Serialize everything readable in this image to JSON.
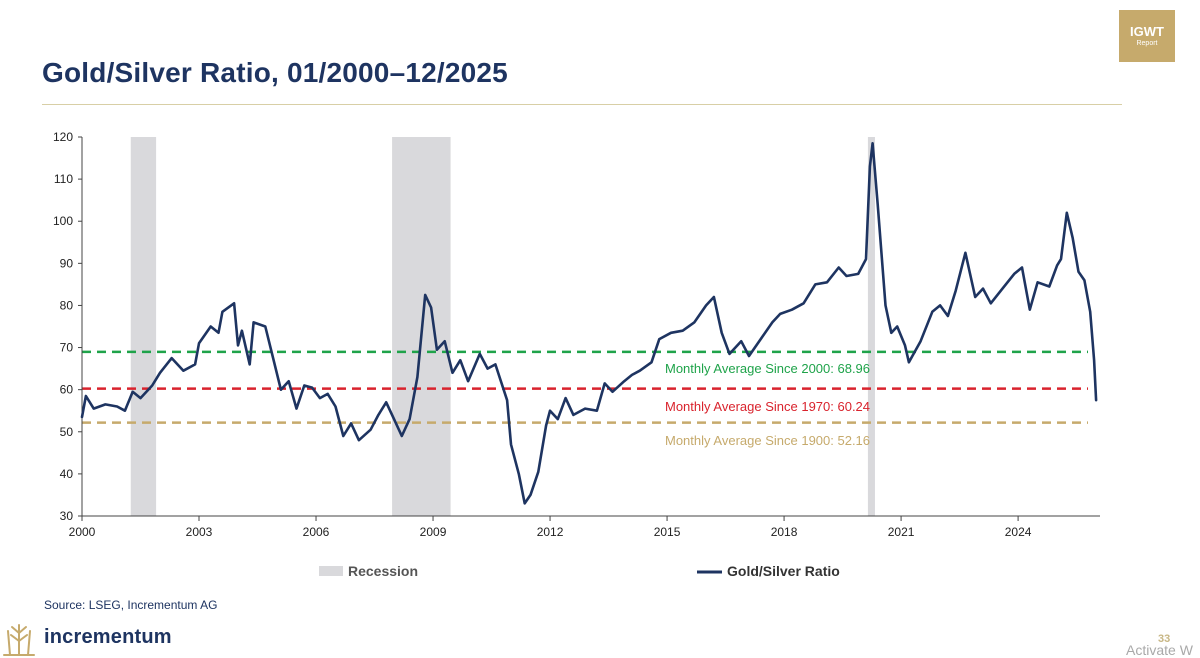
{
  "slide": {
    "title": "Gold/Silver Ratio, 01/2000–12/2025",
    "logo_text": "IGWT",
    "logo_subtext": "Report",
    "source": "Source: LSEG, Incrementum AG",
    "brand": "incrementum",
    "page_number": "33",
    "watermark": "Activate W"
  },
  "colors": {
    "navy": "#1e3461",
    "gold": "#c6aa6c",
    "recession": "#d9d9dc",
    "avg2000": "#1fa34a",
    "avg1970": "#d9232d",
    "avg1900": "#c6aa6c"
  },
  "chart_data": {
    "type": "line",
    "xlim": [
      2000,
      2026.1
    ],
    "ylim": [
      30,
      120
    ],
    "x_ticks": [
      "2000",
      "2003",
      "2006",
      "2009",
      "2012",
      "2015",
      "2018",
      "2021",
      "2024"
    ],
    "y_ticks": [
      "30",
      "40",
      "50",
      "60",
      "70",
      "80",
      "90",
      "100",
      "110",
      "120"
    ],
    "grid": false,
    "legend_position": "bottom",
    "legend": [
      {
        "type": "area",
        "label": "Recession"
      },
      {
        "type": "line",
        "label": "Gold/Silver Ratio"
      }
    ],
    "recessions": [
      {
        "start": 2001.25,
        "end": 2001.9
      },
      {
        "start": 2007.95,
        "end": 2009.45
      },
      {
        "start": 2020.15,
        "end": 2020.33
      }
    ],
    "reference_lines": [
      {
        "label": "Monthly Average Since 2000: 68.96",
        "value": 68.96,
        "color": "#1fa34a"
      },
      {
        "label": "Monthly Average Since 1970: 60.24",
        "value": 60.24,
        "color": "#d9232d"
      },
      {
        "label": "Monthly Average Since 1900: 52.16",
        "value": 52.16,
        "color": "#c6aa6c"
      }
    ],
    "series": [
      {
        "name": "Gold/Silver Ratio",
        "color": "#1e3461",
        "points": [
          [
            2000.0,
            53.5
          ],
          [
            2000.1,
            58.5
          ],
          [
            2000.3,
            55.5
          ],
          [
            2000.6,
            56.5
          ],
          [
            2000.9,
            56.0
          ],
          [
            2001.1,
            55.0
          ],
          [
            2001.3,
            59.5
          ],
          [
            2001.5,
            58.0
          ],
          [
            2001.8,
            61.0
          ],
          [
            2002.0,
            64.0
          ],
          [
            2002.3,
            67.5
          ],
          [
            2002.6,
            64.5
          ],
          [
            2002.9,
            66.0
          ],
          [
            2003.0,
            71.0
          ],
          [
            2003.3,
            75.0
          ],
          [
            2003.5,
            73.5
          ],
          [
            2003.6,
            78.5
          ],
          [
            2003.9,
            80.5
          ],
          [
            2004.0,
            70.5
          ],
          [
            2004.1,
            74.0
          ],
          [
            2004.3,
            66.0
          ],
          [
            2004.4,
            76.0
          ],
          [
            2004.7,
            75.0
          ],
          [
            2004.9,
            67.5
          ],
          [
            2005.1,
            60.0
          ],
          [
            2005.3,
            62.0
          ],
          [
            2005.5,
            55.5
          ],
          [
            2005.7,
            61.0
          ],
          [
            2005.9,
            60.5
          ],
          [
            2006.1,
            58.0
          ],
          [
            2006.3,
            59.0
          ],
          [
            2006.5,
            56.0
          ],
          [
            2006.7,
            49.0
          ],
          [
            2006.9,
            52.0
          ],
          [
            2007.1,
            48.0
          ],
          [
            2007.4,
            50.5
          ],
          [
            2007.6,
            54.0
          ],
          [
            2007.8,
            57.0
          ],
          [
            2008.0,
            53.0
          ],
          [
            2008.2,
            49.0
          ],
          [
            2008.4,
            53.0
          ],
          [
            2008.6,
            63.0
          ],
          [
            2008.8,
            82.5
          ],
          [
            2008.95,
            79.5
          ],
          [
            2009.1,
            69.5
          ],
          [
            2009.3,
            71.5
          ],
          [
            2009.5,
            64.0
          ],
          [
            2009.7,
            67.0
          ],
          [
            2009.9,
            62.0
          ],
          [
            2010.2,
            68.5
          ],
          [
            2010.4,
            65.0
          ],
          [
            2010.6,
            66.0
          ],
          [
            2010.9,
            57.5
          ],
          [
            2011.0,
            47.0
          ],
          [
            2011.2,
            40.0
          ],
          [
            2011.35,
            33.0
          ],
          [
            2011.5,
            35.0
          ],
          [
            2011.7,
            40.5
          ],
          [
            2011.9,
            51.5
          ],
          [
            2012.0,
            55.0
          ],
          [
            2012.2,
            53.0
          ],
          [
            2012.4,
            58.0
          ],
          [
            2012.6,
            54.0
          ],
          [
            2012.9,
            55.5
          ],
          [
            2013.2,
            55.0
          ],
          [
            2013.4,
            61.5
          ],
          [
            2013.6,
            59.5
          ],
          [
            2013.9,
            62.0
          ],
          [
            2014.1,
            63.5
          ],
          [
            2014.3,
            64.5
          ],
          [
            2014.6,
            66.5
          ],
          [
            2014.8,
            72.0
          ],
          [
            2015.1,
            73.5
          ],
          [
            2015.4,
            74.0
          ],
          [
            2015.7,
            76.0
          ],
          [
            2016.0,
            80.0
          ],
          [
            2016.2,
            82.0
          ],
          [
            2016.4,
            73.5
          ],
          [
            2016.6,
            68.5
          ],
          [
            2016.9,
            71.5
          ],
          [
            2017.1,
            68.0
          ],
          [
            2017.4,
            72.0
          ],
          [
            2017.7,
            76.0
          ],
          [
            2017.9,
            78.0
          ],
          [
            2018.2,
            79.0
          ],
          [
            2018.5,
            80.5
          ],
          [
            2018.8,
            85.0
          ],
          [
            2019.1,
            85.5
          ],
          [
            2019.4,
            89.0
          ],
          [
            2019.6,
            87.0
          ],
          [
            2019.9,
            87.5
          ],
          [
            2020.1,
            91.0
          ],
          [
            2020.2,
            113.0
          ],
          [
            2020.27,
            118.5
          ],
          [
            2020.4,
            104.0
          ],
          [
            2020.6,
            80.0
          ],
          [
            2020.75,
            73.5
          ],
          [
            2020.9,
            75.0
          ],
          [
            2021.1,
            70.5
          ],
          [
            2021.2,
            66.5
          ],
          [
            2021.5,
            71.5
          ],
          [
            2021.8,
            78.5
          ],
          [
            2022.0,
            80.0
          ],
          [
            2022.2,
            77.5
          ],
          [
            2022.4,
            83.5
          ],
          [
            2022.65,
            92.5
          ],
          [
            2022.9,
            82.0
          ],
          [
            2023.1,
            84.0
          ],
          [
            2023.3,
            80.5
          ],
          [
            2023.6,
            84.0
          ],
          [
            2023.9,
            87.5
          ],
          [
            2024.1,
            89.0
          ],
          [
            2024.3,
            79.0
          ],
          [
            2024.5,
            85.5
          ],
          [
            2024.8,
            84.5
          ],
          [
            2025.0,
            89.5
          ],
          [
            2025.1,
            91.0
          ],
          [
            2025.25,
            102.0
          ],
          [
            2025.4,
            96.0
          ],
          [
            2025.55,
            88.0
          ],
          [
            2025.7,
            86.0
          ],
          [
            2025.85,
            78.5
          ],
          [
            2025.95,
            67.0
          ],
          [
            2026.0,
            57.5
          ]
        ]
      }
    ]
  }
}
